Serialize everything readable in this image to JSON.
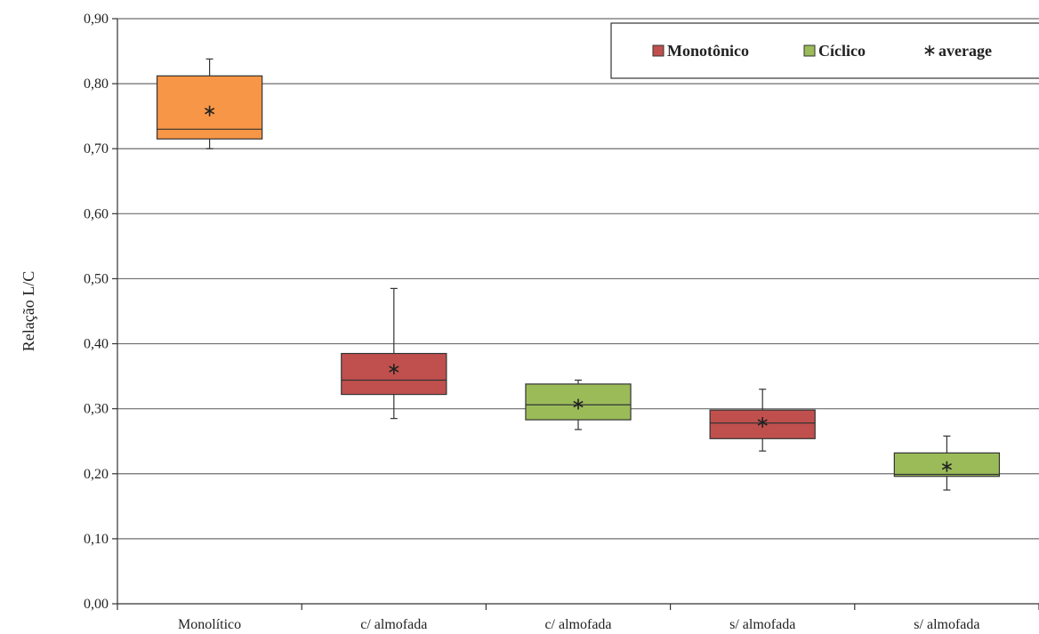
{
  "chart_data": {
    "type": "boxplot",
    "ylabel": "Relação L/C",
    "xlabel": "",
    "ylim": [
      0,
      0.9
    ],
    "y_ticks": [
      "0,00",
      "0,10",
      "0,20",
      "0,30",
      "0,40",
      "0,50",
      "0,60",
      "0,70",
      "0,80",
      "0,90"
    ],
    "grid": true,
    "legend_position": "top-right",
    "legend": [
      {
        "label": "Monotônico",
        "marker": "square",
        "color": "#c0504d"
      },
      {
        "label": "Cíclico",
        "marker": "square",
        "color": "#9bbb59"
      },
      {
        "label": "average",
        "marker": "asterisk",
        "color": "#222222"
      }
    ],
    "categories": [
      "Monolítico",
      "c/ almofada",
      "c/ almofada",
      "s/ almofada",
      "s/ almofada"
    ],
    "boxes": [
      {
        "category": "Monolítico",
        "group": "Monolítico",
        "color": "#f79646",
        "min": 0.7,
        "q1": 0.715,
        "median": 0.73,
        "q3": 0.812,
        "max": 0.838,
        "mean": 0.758
      },
      {
        "category": "c/ almofada",
        "group": "Monotônico",
        "color": "#c0504d",
        "min": 0.285,
        "q1": 0.322,
        "median": 0.344,
        "q3": 0.385,
        "max": 0.485,
        "mean": 0.361
      },
      {
        "category": "c/ almofada",
        "group": "Cíclico",
        "color": "#9bbb59",
        "min": 0.268,
        "q1": 0.283,
        "median": 0.306,
        "q3": 0.338,
        "max": 0.344,
        "mean": 0.307
      },
      {
        "category": "s/ almofada",
        "group": "Monotônico",
        "color": "#c0504d",
        "min": 0.235,
        "q1": 0.254,
        "median": 0.278,
        "q3": 0.298,
        "max": 0.33,
        "mean": 0.279
      },
      {
        "category": "s/ almofada",
        "group": "Cíclico",
        "color": "#9bbb59",
        "min": 0.175,
        "q1": 0.196,
        "median": 0.199,
        "q3": 0.232,
        "max": 0.258,
        "mean": 0.211
      }
    ]
  }
}
